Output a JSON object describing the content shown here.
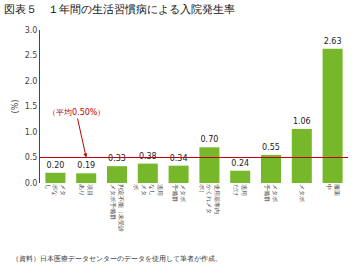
{
  "chart_data": {
    "type": "bar",
    "title": "図表５　１年間の生活習慣病による入院発生率",
    "ylabel": "(%)",
    "footer": "（資料）日本医療データセンターのデータを使用して筆者が作成。",
    "categories": [
      "メタ\nボな\nし",
      "項目\nあり",
      "判定不能（未受診\nメタボ予備群",
      "適用\nなし\nメタ\nボ",
      "メタボ\n予備群",
      "使用基準内\nかくれメタ\nボ）",
      "適用\nだけ",
      "メタボ\n予備群",
      "メタボ",
      "服薬\n中"
    ],
    "values": [
      0.2,
      0.19,
      0.33,
      0.38,
      0.34,
      0.7,
      0.24,
      0.55,
      1.06,
      2.63
    ],
    "value_labels": [
      "0.20",
      "0.19",
      "0.33",
      "0.38",
      "0.34",
      "0.70",
      "0.24",
      "0.55",
      "1.06",
      "2.63"
    ],
    "data_labels": true,
    "color": "#76b82a",
    "reference_line": {
      "value": 0.5,
      "label": "（平均0.50%）",
      "color": "#c00000"
    },
    "ylim": [
      0.0,
      3.0
    ],
    "yticks": [
      {
        "value": 0.0,
        "label": "0.0"
      },
      0.5,
      {
        "value": 1.0,
        "label": "1.0"
      },
      1.5,
      {
        "value": 2.0,
        "label": "2.0"
      },
      2.5,
      {
        "value": 3.0,
        "label": "3.0"
      }
    ],
    "grid": false
  }
}
